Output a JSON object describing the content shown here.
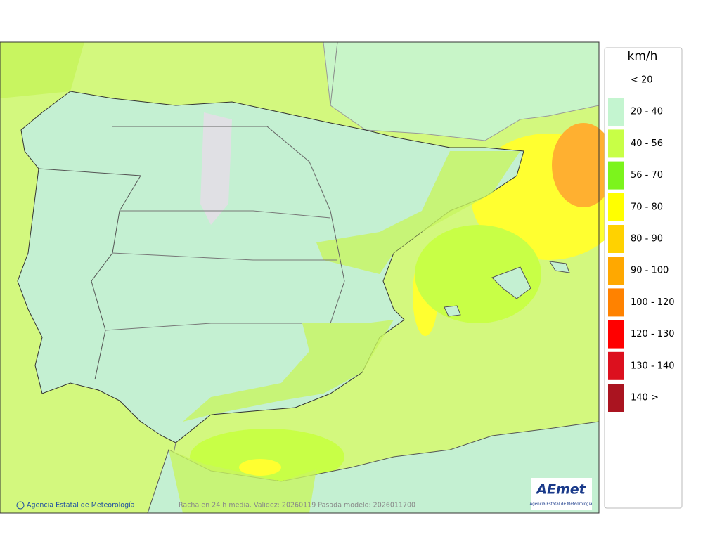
{
  "legend": {
    "title": "km/h",
    "items": [
      {
        "label": "< 20",
        "color": null
      },
      {
        "label": "20 - 40",
        "color": "#c4f5d0"
      },
      {
        "label": "40 - 56",
        "color": "#c8ff46"
      },
      {
        "label": "56 - 70",
        "color": "#7cf41c"
      },
      {
        "label": "70 - 80",
        "color": "#ffff00"
      },
      {
        "label": "80 - 90",
        "color": "#ffd200"
      },
      {
        "label": "90 - 100",
        "color": "#ffa800"
      },
      {
        "label": "100 - 120",
        "color": "#ff8200"
      },
      {
        "label": "120 - 130",
        "color": "#ff0000"
      },
      {
        "label": "130 - 140",
        "color": "#dc101e"
      },
      {
        "label": "140 >",
        "color": "#aa1420"
      }
    ]
  },
  "footer": {
    "credit": "Agencia Estatal de Meteorología",
    "caption": "Racha en 24 h media. Validez: 20260119 Pasada modelo: 2026011700"
  },
  "logo": {
    "name": "AEmet",
    "subtitle": "Agencia Estatal de Meteorología"
  }
}
